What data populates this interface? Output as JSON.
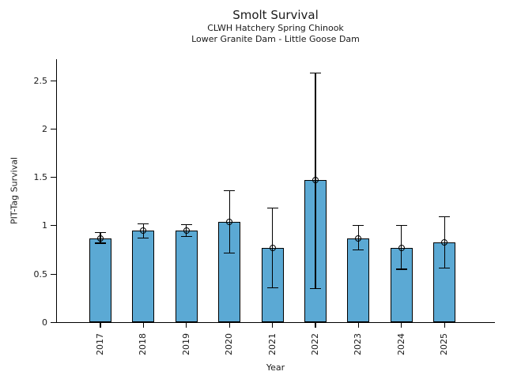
{
  "chart_data": {
    "type": "bar",
    "title": "Smolt Survival",
    "subtitle1": "CLWH Hatchery Spring Chinook",
    "subtitle2": "Lower Granite Dam - Little Goose Dam",
    "xlabel": "Year",
    "ylabel": "PIT-Tag Survival",
    "categories": [
      "2017",
      "2018",
      "2019",
      "2020",
      "2021",
      "2022",
      "2023",
      "2024",
      "2025"
    ],
    "series": [
      {
        "name": "PIT-Tag Survival",
        "values": [
          0.87,
          0.95,
          0.95,
          1.04,
          0.77,
          1.47,
          0.87,
          0.77,
          0.83
        ],
        "error_low": [
          0.82,
          0.87,
          0.89,
          0.72,
          0.36,
          0.35,
          0.75,
          0.55,
          0.56
        ],
        "error_high": [
          0.93,
          1.02,
          1.01,
          1.36,
          1.18,
          2.58,
          1.0,
          1.0,
          1.09
        ]
      }
    ],
    "yticks": [
      0,
      0.5,
      1,
      1.5,
      2,
      2.5
    ],
    "ylim": [
      0,
      2.72
    ],
    "grid": false,
    "legend_position": "none",
    "bar_color": "#5BA9D4",
    "edge_color": "#000000",
    "error_color": "#000000"
  }
}
